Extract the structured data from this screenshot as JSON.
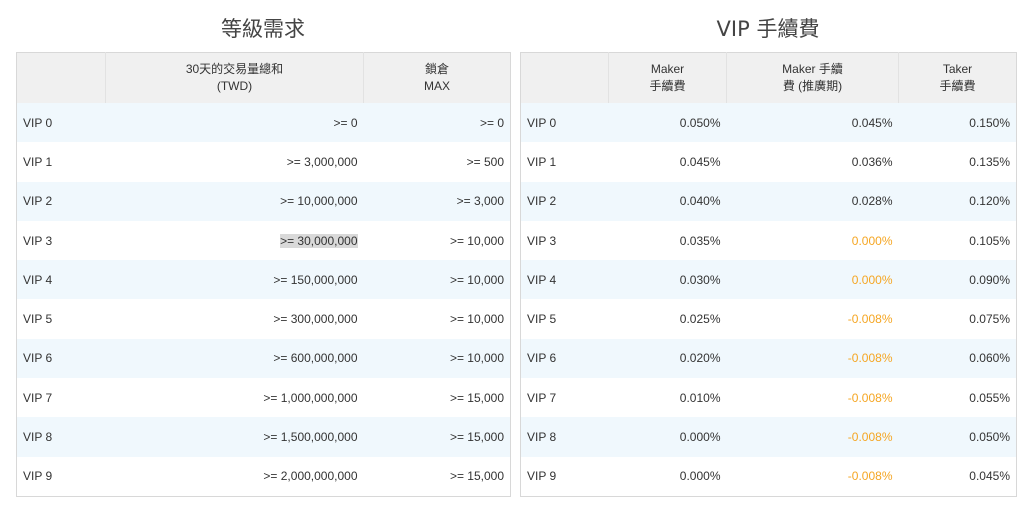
{
  "titles": {
    "left": "等級需求",
    "right": "VIP 手續費"
  },
  "tier_table": {
    "headers": [
      "",
      "30天的交易量總和\n(TWD)",
      "鎖倉\nMAX"
    ],
    "rows": [
      {
        "level": "VIP 0",
        "volume": ">= 0",
        "lock": ">= 0"
      },
      {
        "level": "VIP 1",
        "volume": ">= 3,000,000",
        "lock": ">= 500"
      },
      {
        "level": "VIP 2",
        "volume": ">= 10,000,000",
        "lock": ">= 3,000"
      },
      {
        "level": "VIP 3",
        "volume": ">= 30,000,000",
        "lock": ">= 10,000"
      },
      {
        "level": "VIP 4",
        "volume": ">= 150,000,000",
        "lock": ">= 10,000"
      },
      {
        "level": "VIP 5",
        "volume": ">= 300,000,000",
        "lock": ">= 10,000"
      },
      {
        "level": "VIP 6",
        "volume": ">= 600,000,000",
        "lock": ">= 10,000"
      },
      {
        "level": "VIP 7",
        "volume": ">= 1,000,000,000",
        "lock": ">= 15,000"
      },
      {
        "level": "VIP 8",
        "volume": ">= 1,500,000,000",
        "lock": ">= 15,000"
      },
      {
        "level": "VIP 9",
        "volume": ">= 2,000,000,000",
        "lock": ">= 15,000"
      }
    ]
  },
  "fee_table": {
    "headers": [
      "",
      "Maker\n手續費",
      "Maker 手續\n費 (推廣期)",
      "Taker\n手續費"
    ],
    "rows": [
      {
        "level": "VIP 0",
        "maker": "0.050%",
        "maker_promo": "0.045%",
        "taker": "0.150%",
        "promo_highlight": false
      },
      {
        "level": "VIP 1",
        "maker": "0.045%",
        "maker_promo": "0.036%",
        "taker": "0.135%",
        "promo_highlight": false
      },
      {
        "level": "VIP 2",
        "maker": "0.040%",
        "maker_promo": "0.028%",
        "taker": "0.120%",
        "promo_highlight": false
      },
      {
        "level": "VIP 3",
        "maker": "0.035%",
        "maker_promo": "0.000%",
        "taker": "0.105%",
        "promo_highlight": true
      },
      {
        "level": "VIP 4",
        "maker": "0.030%",
        "maker_promo": "0.000%",
        "taker": "0.090%",
        "promo_highlight": true
      },
      {
        "level": "VIP 5",
        "maker": "0.025%",
        "maker_promo": "-0.008%",
        "taker": "0.075%",
        "promo_highlight": true
      },
      {
        "level": "VIP 6",
        "maker": "0.020%",
        "maker_promo": "-0.008%",
        "taker": "0.060%",
        "promo_highlight": true
      },
      {
        "level": "VIP 7",
        "maker": "0.010%",
        "maker_promo": "-0.008%",
        "taker": "0.055%",
        "promo_highlight": true
      },
      {
        "level": "VIP 8",
        "maker": "0.000%",
        "maker_promo": "-0.008%",
        "taker": "0.050%",
        "promo_highlight": true
      },
      {
        "level": "VIP 9",
        "maker": "0.000%",
        "maker_promo": "-0.008%",
        "taker": "0.045%",
        "promo_highlight": true
      }
    ]
  },
  "colors": {
    "highlight_text": "#f5a623",
    "row_stripe": "#f0f8fd",
    "header_bg": "#f0f0f0",
    "selected_cell_bg": "#d9d9d9"
  },
  "selection": {
    "table": "tier_table",
    "row": 3,
    "field": "volume"
  }
}
